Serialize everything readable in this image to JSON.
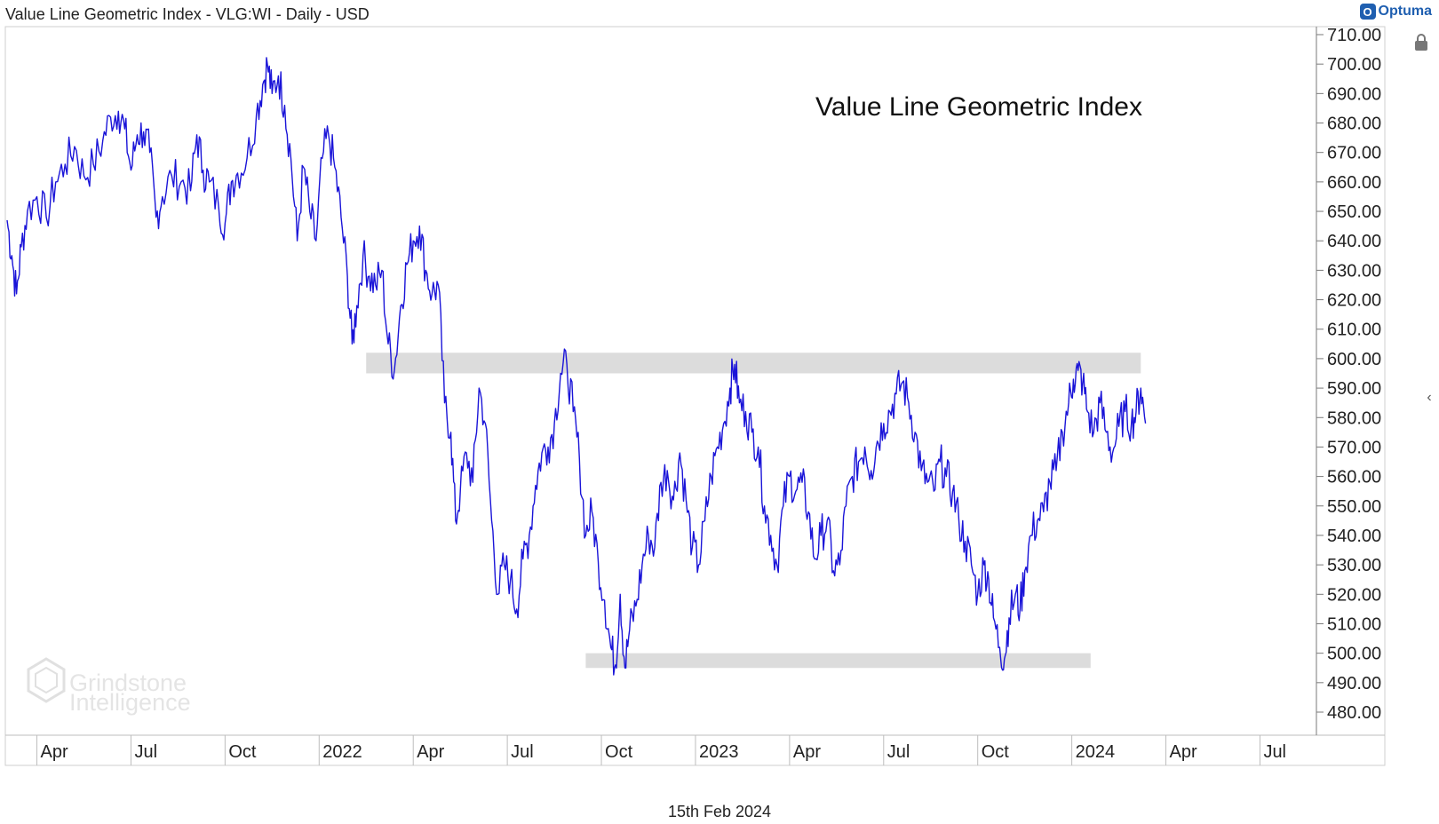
{
  "header": {
    "title": "Value Line Geometric Index - VLG:WI - Daily - USD"
  },
  "brand": {
    "name": "Optuma",
    "color": "#1f5fb0"
  },
  "footer": {
    "date": "15th Feb 2024"
  },
  "watermark": {
    "line1": "Grindstone",
    "line2": "Intelligence"
  },
  "chart_data": {
    "type": "line",
    "title": "Value Line Geometric Index",
    "series_color": "#1a14d8",
    "xlabel": "",
    "ylabel": "",
    "ylim": [
      474,
      712
    ],
    "y_ticks": [
      "710.00",
      "700.00",
      "690.00",
      "680.00",
      "670.00",
      "660.00",
      "650.00",
      "640.00",
      "630.00",
      "620.00",
      "610.00",
      "600.00",
      "590.00",
      "580.00",
      "570.00",
      "560.00",
      "550.00",
      "540.00",
      "530.00",
      "520.00",
      "510.00",
      "500.00",
      "490.00",
      "480.00"
    ],
    "x_tick_labels": [
      {
        "label": "Apr",
        "t": 0.0
      },
      {
        "label": "Jul",
        "t": 3.0
      },
      {
        "label": "Oct",
        "t": 6.0
      },
      {
        "label": "2022",
        "t": 9.0
      },
      {
        "label": "Apr",
        "t": 12.0
      },
      {
        "label": "Jul",
        "t": 15.0
      },
      {
        "label": "Oct",
        "t": 18.0
      },
      {
        "label": "2023",
        "t": 21.0
      },
      {
        "label": "Apr",
        "t": 24.0
      },
      {
        "label": "Jul",
        "t": 27.0
      },
      {
        "label": "Oct",
        "t": 30.0
      },
      {
        "label": "2024",
        "t": 33.0
      },
      {
        "label": "Apr",
        "t": 36.0
      },
      {
        "label": "Jul",
        "t": 39.0
      }
    ],
    "x_range_months": [
      -0.95,
      40.8
    ],
    "bands": [
      {
        "name": "resistance",
        "from_t": 10.5,
        "to_t": 35.2,
        "ymin": 595,
        "ymax": 602
      },
      {
        "name": "support",
        "from_t": 17.5,
        "to_t": 33.6,
        "ymin": 495,
        "ymax": 500
      }
    ],
    "series": [
      {
        "name": "VLG:WI",
        "points": [
          [
            -0.95,
            647
          ],
          [
            -0.8,
            635
          ],
          [
            -0.65,
            622
          ],
          [
            -0.5,
            638
          ],
          [
            -0.3,
            650
          ],
          [
            0.0,
            655
          ],
          [
            0.3,
            648
          ],
          [
            0.6,
            660
          ],
          [
            0.9,
            666
          ],
          [
            1.2,
            672
          ],
          [
            1.5,
            662
          ],
          [
            1.8,
            666
          ],
          [
            2.1,
            674
          ],
          [
            2.35,
            682
          ],
          [
            2.6,
            684
          ],
          [
            2.8,
            678
          ],
          [
            3.0,
            664
          ],
          [
            3.2,
            676
          ],
          [
            3.4,
            677
          ],
          [
            3.6,
            670
          ],
          [
            3.8,
            648
          ],
          [
            4.0,
            655
          ],
          [
            4.3,
            662
          ],
          [
            4.6,
            660
          ],
          [
            4.9,
            657
          ],
          [
            5.1,
            676
          ],
          [
            5.3,
            664
          ],
          [
            5.5,
            660
          ],
          [
            5.8,
            651
          ],
          [
            6.0,
            646
          ],
          [
            6.2,
            660
          ],
          [
            6.4,
            663
          ],
          [
            6.7,
            668
          ],
          [
            7.0,
            683
          ],
          [
            7.2,
            693
          ],
          [
            7.35,
            700
          ],
          [
            7.5,
            690
          ],
          [
            7.7,
            696
          ],
          [
            7.9,
            686
          ],
          [
            8.1,
            668
          ],
          [
            8.3,
            640
          ],
          [
            8.5,
            665
          ],
          [
            8.7,
            650
          ],
          [
            8.9,
            640
          ],
          [
            9.1,
            668
          ],
          [
            9.3,
            676
          ],
          [
            9.5,
            665
          ],
          [
            9.7,
            648
          ],
          [
            9.9,
            628
          ],
          [
            10.05,
            605
          ],
          [
            10.2,
            618
          ],
          [
            10.4,
            635
          ],
          [
            10.6,
            628
          ],
          [
            10.8,
            625
          ],
          [
            11.0,
            630
          ],
          [
            11.2,
            605
          ],
          [
            11.4,
            596
          ],
          [
            11.6,
            618
          ],
          [
            11.8,
            632
          ],
          [
            12.0,
            640
          ],
          [
            12.2,
            645
          ],
          [
            12.4,
            630
          ],
          [
            12.6,
            622
          ],
          [
            12.8,
            625
          ],
          [
            13.0,
            585
          ],
          [
            13.2,
            575
          ],
          [
            13.35,
            545
          ],
          [
            13.5,
            555
          ],
          [
            13.7,
            568
          ],
          [
            13.9,
            558
          ],
          [
            14.1,
            590
          ],
          [
            14.3,
            578
          ],
          [
            14.5,
            545
          ],
          [
            14.7,
            520
          ],
          [
            14.9,
            530
          ],
          [
            15.1,
            525
          ],
          [
            15.3,
            515
          ],
          [
            15.5,
            532
          ],
          [
            15.7,
            540
          ],
          [
            15.9,
            557
          ],
          [
            16.1,
            568
          ],
          [
            16.3,
            570
          ],
          [
            16.5,
            578
          ],
          [
            16.7,
            595
          ],
          [
            16.9,
            598
          ],
          [
            17.1,
            582
          ],
          [
            17.3,
            566
          ],
          [
            17.5,
            540
          ],
          [
            17.7,
            548
          ],
          [
            17.9,
            531
          ],
          [
            18.1,
            518
          ],
          [
            18.3,
            502
          ],
          [
            18.45,
            496
          ],
          [
            18.6,
            520
          ],
          [
            18.75,
            495
          ],
          [
            18.9,
            508
          ],
          [
            19.1,
            516
          ],
          [
            19.3,
            530
          ],
          [
            19.5,
            540
          ],
          [
            19.7,
            536
          ],
          [
            19.9,
            558
          ],
          [
            20.1,
            562
          ],
          [
            20.3,
            552
          ],
          [
            20.5,
            568
          ],
          [
            20.7,
            552
          ],
          [
            20.9,
            536
          ],
          [
            21.1,
            530
          ],
          [
            21.3,
            545
          ],
          [
            21.5,
            560
          ],
          [
            21.7,
            570
          ],
          [
            21.9,
            578
          ],
          [
            22.1,
            590
          ],
          [
            22.25,
            598
          ],
          [
            22.4,
            585
          ],
          [
            22.6,
            582
          ],
          [
            22.8,
            575
          ],
          [
            23.0,
            570
          ],
          [
            23.2,
            550
          ],
          [
            23.4,
            540
          ],
          [
            23.6,
            530
          ],
          [
            23.8,
            550
          ],
          [
            24.0,
            560
          ],
          [
            24.2,
            555
          ],
          [
            24.4,
            558
          ],
          [
            24.6,
            548
          ],
          [
            24.8,
            532
          ],
          [
            25.0,
            540
          ],
          [
            25.2,
            545
          ],
          [
            25.4,
            528
          ],
          [
            25.6,
            530
          ],
          [
            25.8,
            550
          ],
          [
            26.0,
            560
          ],
          [
            26.2,
            565
          ],
          [
            26.4,
            570
          ],
          [
            26.6,
            562
          ],
          [
            26.8,
            572
          ],
          [
            27.0,
            578
          ],
          [
            27.2,
            582
          ],
          [
            27.4,
            588
          ],
          [
            27.6,
            592
          ],
          [
            27.8,
            585
          ],
          [
            28.0,
            575
          ],
          [
            28.2,
            562
          ],
          [
            28.4,
            558
          ],
          [
            28.6,
            555
          ],
          [
            28.8,
            565
          ],
          [
            29.0,
            560
          ],
          [
            29.2,
            555
          ],
          [
            29.4,
            545
          ],
          [
            29.6,
            538
          ],
          [
            29.8,
            530
          ],
          [
            30.0,
            520
          ],
          [
            30.2,
            530
          ],
          [
            30.35,
            525
          ],
          [
            30.5,
            512
          ],
          [
            30.7,
            502
          ],
          [
            30.85,
            498
          ],
          [
            31.0,
            512
          ],
          [
            31.2,
            520
          ],
          [
            31.35,
            515
          ],
          [
            31.5,
            528
          ],
          [
            31.7,
            540
          ],
          [
            31.9,
            545
          ],
          [
            32.1,
            548
          ],
          [
            32.3,
            558
          ],
          [
            32.5,
            562
          ],
          [
            32.7,
            575
          ],
          [
            32.9,
            585
          ],
          [
            33.05,
            593
          ],
          [
            33.2,
            596
          ],
          [
            33.35,
            592
          ],
          [
            33.5,
            582
          ],
          [
            33.7,
            575
          ],
          [
            33.9,
            585
          ],
          [
            34.1,
            575
          ],
          [
            34.3,
            568
          ],
          [
            34.5,
            577
          ],
          [
            34.7,
            582
          ],
          [
            34.9,
            578
          ],
          [
            35.05,
            582
          ],
          [
            35.2,
            590
          ],
          [
            35.35,
            578
          ]
        ]
      }
    ]
  }
}
